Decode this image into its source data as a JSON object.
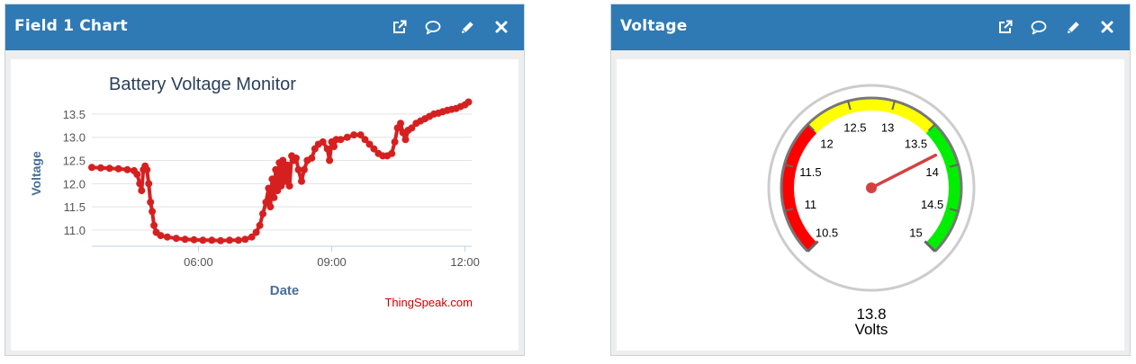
{
  "widgets": [
    {
      "title": "Field 1 Chart"
    },
    {
      "title": "Voltage"
    }
  ],
  "icons": [
    "external-link-icon",
    "comment-icon",
    "pencil-icon",
    "close-icon"
  ],
  "colors": {
    "header": "#2f7ab5",
    "series": "#d62020",
    "gauge_red": "#ff0000",
    "gauge_yellow": "#ffff00",
    "gauge_green": "#00ee00",
    "needle": "#d64040",
    "axis_title": "#4a6e9a",
    "chart_title": "#2b3f58"
  },
  "chart_data": [
    {
      "type": "scatter",
      "title": "Battery Voltage Monitor",
      "xlabel": "Date",
      "ylabel": "Voltage",
      "credit": "ThingSpeak.com",
      "x_unit": "hours",
      "xlim": [
        3.6,
        12.15
      ],
      "ylim": [
        10.65,
        13.75
      ],
      "x_ticks": [
        {
          "value": 6,
          "label": "06:00"
        },
        {
          "value": 9,
          "label": "09:00"
        },
        {
          "value": 12,
          "label": "12:00"
        }
      ],
      "y_ticks": [
        {
          "value": 11.0,
          "label": "11.0"
        },
        {
          "value": 11.5,
          "label": "11.5"
        },
        {
          "value": 12.0,
          "label": "12.0"
        },
        {
          "value": 12.5,
          "label": "12.5"
        },
        {
          "value": 13.0,
          "label": "13.0"
        },
        {
          "value": 13.5,
          "label": "13.5"
        }
      ],
      "series": [
        {
          "name": "Voltage",
          "points": [
            [
              3.6,
              12.35
            ],
            [
              3.8,
              12.34
            ],
            [
              4.0,
              12.33
            ],
            [
              4.2,
              12.32
            ],
            [
              4.4,
              12.3
            ],
            [
              4.55,
              12.28
            ],
            [
              4.62,
              12.2
            ],
            [
              4.68,
              12.0
            ],
            [
              4.72,
              11.85
            ],
            [
              4.76,
              12.3
            ],
            [
              4.8,
              12.38
            ],
            [
              4.84,
              12.3
            ],
            [
              4.88,
              12.0
            ],
            [
              4.92,
              11.6
            ],
            [
              4.96,
              11.4
            ],
            [
              5.0,
              11.1
            ],
            [
              5.05,
              10.95
            ],
            [
              5.15,
              10.88
            ],
            [
              5.3,
              10.85
            ],
            [
              5.5,
              10.82
            ],
            [
              5.7,
              10.8
            ],
            [
              5.9,
              10.79
            ],
            [
              6.1,
              10.78
            ],
            [
              6.3,
              10.78
            ],
            [
              6.5,
              10.77
            ],
            [
              6.7,
              10.78
            ],
            [
              6.9,
              10.78
            ],
            [
              7.05,
              10.8
            ],
            [
              7.2,
              10.85
            ],
            [
              7.3,
              10.95
            ],
            [
              7.38,
              11.1
            ],
            [
              7.45,
              11.35
            ],
            [
              7.52,
              11.6
            ],
            [
              7.58,
              11.9
            ],
            [
              7.62,
              11.5
            ],
            [
              7.66,
              12.1
            ],
            [
              7.7,
              11.7
            ],
            [
              7.74,
              12.3
            ],
            [
              7.78,
              11.85
            ],
            [
              7.82,
              12.45
            ],
            [
              7.86,
              11.95
            ],
            [
              7.9,
              12.5
            ],
            [
              7.95,
              12.05
            ],
            [
              8.0,
              12.4
            ],
            [
              8.05,
              11.95
            ],
            [
              8.1,
              12.6
            ],
            [
              8.15,
              12.5
            ],
            [
              8.2,
              12.55
            ],
            [
              8.25,
              12.3
            ],
            [
              8.32,
              12.05
            ],
            [
              8.38,
              12.3
            ],
            [
              8.45,
              12.5
            ],
            [
              8.55,
              12.55
            ],
            [
              8.62,
              12.75
            ],
            [
              8.7,
              12.85
            ],
            [
              8.8,
              12.9
            ],
            [
              8.9,
              12.75
            ],
            [
              8.95,
              12.5
            ],
            [
              9.0,
              12.9
            ],
            [
              9.05,
              12.8
            ],
            [
              9.1,
              12.95
            ],
            [
              9.2,
              12.95
            ],
            [
              9.35,
              13.0
            ],
            [
              9.5,
              13.05
            ],
            [
              9.65,
              13.05
            ],
            [
              9.75,
              12.95
            ],
            [
              9.85,
              12.85
            ],
            [
              9.95,
              12.75
            ],
            [
              10.05,
              12.65
            ],
            [
              10.15,
              12.6
            ],
            [
              10.25,
              12.6
            ],
            [
              10.35,
              12.65
            ],
            [
              10.42,
              12.9
            ],
            [
              10.48,
              13.2
            ],
            [
              10.55,
              13.3
            ],
            [
              10.6,
              13.1
            ],
            [
              10.66,
              12.95
            ],
            [
              10.72,
              13.15
            ],
            [
              10.8,
              13.2
            ],
            [
              10.9,
              13.3
            ],
            [
              11.0,
              13.35
            ],
            [
              11.1,
              13.4
            ],
            [
              11.2,
              13.45
            ],
            [
              11.3,
              13.5
            ],
            [
              11.4,
              13.52
            ],
            [
              11.5,
              13.55
            ],
            [
              11.6,
              13.58
            ],
            [
              11.7,
              13.6
            ],
            [
              11.8,
              13.62
            ],
            [
              11.9,
              13.66
            ],
            [
              12.0,
              13.7
            ],
            [
              12.08,
              13.76
            ]
          ]
        }
      ]
    },
    {
      "type": "gauge",
      "value": 13.8,
      "value_label": "13.8",
      "unit_label": "Volts",
      "range": [
        10.5,
        15
      ],
      "tick_labels": [
        "10.5",
        "11",
        "11.5",
        "12",
        "12.5",
        "13",
        "13.5",
        "14",
        "14.5",
        "15"
      ],
      "bands": [
        {
          "from": 10.5,
          "to": 12,
          "color": "#ff0000"
        },
        {
          "from": 12,
          "to": 13.5,
          "color": "#ffff00"
        },
        {
          "from": 13.5,
          "to": 15,
          "color": "#00ee00"
        }
      ]
    }
  ]
}
